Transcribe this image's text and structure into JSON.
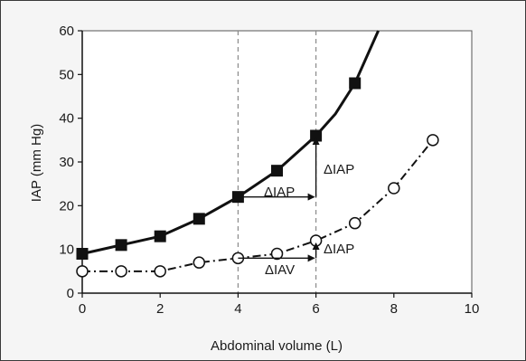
{
  "chart_data": {
    "type": "line",
    "xlabel": "Abdominal volume (L)",
    "ylabel": "IAP (mm Hg)",
    "xlim": [
      0,
      10
    ],
    "ylim": [
      0,
      60
    ],
    "x_ticks": [
      0,
      2,
      4,
      6,
      8,
      10
    ],
    "y_ticks": [
      0,
      10,
      20,
      30,
      40,
      50,
      60
    ],
    "grid": false,
    "reference_lines_x": [
      4,
      6
    ],
    "series": [
      {
        "marker": "filled-square",
        "line_style": "solid",
        "x": [
          0,
          1,
          2,
          3,
          4,
          5,
          6,
          6.5,
          7,
          7.6
        ],
        "y": [
          9,
          11,
          13,
          17,
          22,
          28,
          36,
          41,
          48,
          60
        ],
        "marker_x": [
          0,
          1,
          2,
          3,
          4,
          5,
          6,
          7
        ],
        "marker_y": [
          9,
          11,
          13,
          17,
          22,
          28,
          36,
          48
        ]
      },
      {
        "marker": "open-circle",
        "line_style": "dash-dot",
        "x": [
          0,
          1,
          2,
          3,
          4,
          5,
          6,
          7,
          8,
          9
        ],
        "y": [
          5,
          5,
          5,
          7,
          8,
          9,
          12,
          16,
          24,
          35
        ],
        "marker_x": [
          0,
          1,
          2,
          3,
          4,
          5,
          6,
          7,
          8,
          9
        ],
        "marker_y": [
          5,
          5,
          5,
          7,
          8,
          9,
          12,
          16,
          24,
          35
        ]
      }
    ],
    "annotations": [
      {
        "id": "upper_iav",
        "text": "ΔIAP",
        "x0": 4,
        "x1": 6,
        "y": 22
      },
      {
        "id": "upper_iap",
        "text": "ΔIAP",
        "x": 6,
        "y0": 22,
        "y1": 36
      },
      {
        "id": "lower_iav",
        "text": "ΔIAV",
        "x0": 4,
        "x1": 6,
        "y": 8
      },
      {
        "id": "lower_iap",
        "text": "ΔIAP",
        "x": 6,
        "y0": 8,
        "y1": 12
      }
    ],
    "colors": {
      "background": "#f5f5f5",
      "plot_area": "#ffffff",
      "line": "#111111",
      "reference_line": "#8a8a8a"
    }
  }
}
